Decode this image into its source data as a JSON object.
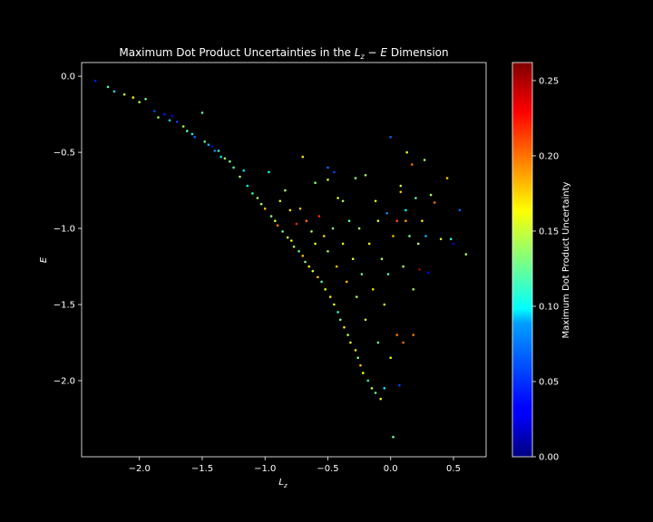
{
  "chart_data": {
    "type": "scatter",
    "title": "Maximum Dot Product Uncertainties in the L_z − E Dimension",
    "title_parts": {
      "prefix": "Maximum Dot Product Uncertainties in the ",
      "var1": "L",
      "sub": "z",
      "op": " − ",
      "var2": "E",
      "suffix": " Dimension"
    },
    "xlabel": {
      "var": "L",
      "sub": "z"
    },
    "ylabel": "E",
    "xlim": [
      -2.46,
      0.76
    ],
    "ylim": [
      -2.5,
      0.09
    ],
    "xticks": [
      -2.0,
      -1.5,
      -1.0,
      -0.5,
      0.0,
      0.5
    ],
    "xtick_labels": [
      "−2.0",
      "−1.5",
      "−1.0",
      "−0.5",
      "0.0",
      "0.5"
    ],
    "yticks": [
      0.0,
      -0.5,
      -1.0,
      -1.5,
      -2.0
    ],
    "ytick_labels": [
      "0.0",
      "−0.5",
      "−1.0",
      "−1.5",
      "−2.0"
    ],
    "colorbar": {
      "label": "Maximum Dot Product Uncertainty",
      "range": [
        0.0,
        0.262
      ],
      "ticks": [
        0.0,
        0.05,
        0.1,
        0.15,
        0.2,
        0.25
      ],
      "tick_labels": [
        "0.00",
        "0.05",
        "0.10",
        "0.15",
        "0.20",
        "0.25"
      ],
      "colormap": "jet"
    },
    "grid": false,
    "legend": "none",
    "background": "#000000",
    "foreground": "#ffffff",
    "points": [
      [
        -2.35,
        -0.03,
        0.04
      ],
      [
        -2.25,
        -0.07,
        0.12
      ],
      [
        -2.2,
        -0.1,
        0.1
      ],
      [
        -2.12,
        -0.12,
        0.15
      ],
      [
        -2.05,
        -0.14,
        0.16
      ],
      [
        -2.0,
        -0.17,
        0.14
      ],
      [
        -1.95,
        -0.15,
        0.13
      ],
      [
        -1.88,
        -0.23,
        0.05
      ],
      [
        -1.85,
        -0.27,
        0.14
      ],
      [
        -1.8,
        -0.25,
        0.04
      ],
      [
        -1.76,
        -0.29,
        0.09
      ],
      [
        -1.74,
        -0.26,
        0.03
      ],
      [
        -1.7,
        -0.3,
        0.05
      ],
      [
        -1.65,
        -0.33,
        0.14
      ],
      [
        -1.62,
        -0.36,
        0.12
      ],
      [
        -1.58,
        -0.38,
        0.1
      ],
      [
        -1.56,
        -0.4,
        0.06
      ],
      [
        -1.5,
        -0.24,
        0.12
      ],
      [
        -1.48,
        -0.43,
        0.12
      ],
      [
        -1.45,
        -0.45,
        0.08
      ],
      [
        -1.42,
        -0.46,
        0.03
      ],
      [
        -1.4,
        -0.49,
        0.07
      ],
      [
        -1.37,
        -0.49,
        0.11
      ],
      [
        -1.35,
        -0.53,
        0.09
      ],
      [
        -1.32,
        -0.54,
        0.14
      ],
      [
        -1.28,
        -0.56,
        0.13
      ],
      [
        -1.25,
        -0.6,
        0.12
      ],
      [
        -1.2,
        -0.66,
        0.14
      ],
      [
        -1.17,
        -0.62,
        0.09
      ],
      [
        -1.14,
        -0.72,
        0.1
      ],
      [
        -1.1,
        -0.77,
        0.11
      ],
      [
        -1.06,
        -0.8,
        0.14
      ],
      [
        -1.03,
        -0.84,
        0.14
      ],
      [
        -1.0,
        -0.87,
        0.18
      ],
      [
        -0.97,
        -0.63,
        0.1
      ],
      [
        -0.95,
        -0.92,
        0.13
      ],
      [
        -0.92,
        -0.95,
        0.15
      ],
      [
        -0.9,
        -0.98,
        0.2
      ],
      [
        -0.88,
        -0.82,
        0.15
      ],
      [
        -0.86,
        -1.02,
        0.12
      ],
      [
        -0.84,
        -0.75,
        0.14
      ],
      [
        -0.82,
        -1.06,
        0.15
      ],
      [
        -0.8,
        -0.88,
        0.17
      ],
      [
        -0.79,
        -1.08,
        0.16
      ],
      [
        -0.77,
        -1.12,
        0.14
      ],
      [
        -0.75,
        -0.97,
        0.22
      ],
      [
        -0.73,
        -1.15,
        0.12
      ],
      [
        -0.72,
        -0.87,
        0.18
      ],
      [
        -0.7,
        -1.18,
        0.18
      ],
      [
        -0.7,
        -0.53,
        0.17
      ],
      [
        -0.68,
        -1.22,
        0.13
      ],
      [
        -0.67,
        -0.95,
        0.2
      ],
      [
        -0.65,
        -1.25,
        0.17
      ],
      [
        -0.63,
        -1.02,
        0.14
      ],
      [
        -0.62,
        -1.28,
        0.15
      ],
      [
        -0.6,
        -1.1,
        0.16
      ],
      [
        -0.6,
        -0.7,
        0.13
      ],
      [
        -0.58,
        -1.32,
        0.18
      ],
      [
        -0.57,
        -0.92,
        0.22
      ],
      [
        -0.55,
        -1.35,
        0.12
      ],
      [
        -0.53,
        -1.05,
        0.17
      ],
      [
        -0.52,
        -1.4,
        0.16
      ],
      [
        -0.5,
        -1.15,
        0.14
      ],
      [
        -0.5,
        -0.6,
        0.06
      ],
      [
        -0.48,
        -1.45,
        0.17
      ],
      [
        -0.46,
        -1.0,
        0.13
      ],
      [
        -0.45,
        -1.5,
        0.16
      ],
      [
        -0.43,
        -1.25,
        0.18
      ],
      [
        -0.42,
        -1.55,
        0.11
      ],
      [
        -0.42,
        -0.8,
        0.16
      ],
      [
        -0.4,
        -1.6,
        0.13
      ],
      [
        -0.38,
        -1.1,
        0.16
      ],
      [
        -0.37,
        -1.65,
        0.17
      ],
      [
        -0.35,
        -1.35,
        0.18
      ],
      [
        -0.34,
        -1.7,
        0.14
      ],
      [
        -0.33,
        -0.95,
        0.12
      ],
      [
        -0.32,
        -1.75,
        0.16
      ],
      [
        -0.3,
        -1.2,
        0.15
      ],
      [
        -0.28,
        -1.8,
        0.17
      ],
      [
        -0.27,
        -1.45,
        0.14
      ],
      [
        -0.26,
        -1.85,
        0.13
      ],
      [
        -0.25,
        -1.0,
        0.14
      ],
      [
        -0.24,
        -1.9,
        0.18
      ],
      [
        -0.23,
        -1.3,
        0.13
      ],
      [
        -0.22,
        -1.95,
        0.16
      ],
      [
        -0.2,
        -1.6,
        0.15
      ],
      [
        -0.2,
        -0.65,
        0.14
      ],
      [
        -0.18,
        -2.0,
        0.11
      ],
      [
        -0.17,
        -1.1,
        0.16
      ],
      [
        -0.15,
        -2.05,
        0.15
      ],
      [
        -0.14,
        -1.4,
        0.17
      ],
      [
        -0.12,
        -2.08,
        0.12
      ],
      [
        -0.1,
        -1.75,
        0.13
      ],
      [
        -0.1,
        -0.95,
        0.15
      ],
      [
        -0.08,
        -2.12,
        0.16
      ],
      [
        -0.07,
        -1.2,
        0.14
      ],
      [
        -0.05,
        -1.5,
        0.15
      ],
      [
        -0.05,
        -2.05,
        0.1
      ],
      [
        -0.03,
        -0.9,
        0.07
      ],
      [
        -0.02,
        -1.3,
        0.12
      ],
      [
        0.0,
        -0.4,
        0.06
      ],
      [
        0.0,
        -1.85,
        0.16
      ],
      [
        0.02,
        -1.05,
        0.18
      ],
      [
        0.05,
        -0.95,
        0.21
      ],
      [
        0.05,
        -1.7,
        0.2
      ],
      [
        0.07,
        -2.03,
        0.05
      ],
      [
        0.08,
        -0.72,
        0.15
      ],
      [
        0.1,
        -1.25,
        0.14
      ],
      [
        0.1,
        -1.75,
        0.2
      ],
      [
        0.12,
        -0.88,
        0.1
      ],
      [
        0.13,
        -0.5,
        0.16
      ],
      [
        0.15,
        -1.05,
        0.13
      ],
      [
        0.17,
        -0.58,
        0.2
      ],
      [
        0.18,
        -1.4,
        0.14
      ],
      [
        0.2,
        -0.8,
        0.12
      ],
      [
        0.22,
        -1.1,
        0.15
      ],
      [
        0.23,
        -1.27,
        0.25
      ],
      [
        0.25,
        -0.95,
        0.17
      ],
      [
        0.27,
        -0.55,
        0.14
      ],
      [
        0.28,
        -1.05,
        0.08
      ],
      [
        0.3,
        -1.29,
        0.03
      ],
      [
        0.32,
        -0.78,
        0.14
      ],
      [
        0.35,
        -0.83,
        0.2
      ],
      [
        0.4,
        -1.07,
        0.15
      ],
      [
        0.45,
        -0.67,
        0.18
      ],
      [
        0.48,
        -1.07,
        0.11
      ],
      [
        0.5,
        -1.1,
        0.03
      ],
      [
        0.55,
        -0.88,
        0.06
      ],
      [
        0.6,
        -1.17,
        0.14
      ],
      [
        0.02,
        -2.37,
        0.13
      ],
      [
        -0.28,
        -0.67,
        0.13
      ],
      [
        -0.45,
        -0.63,
        0.05
      ],
      [
        -0.5,
        -0.68,
        0.15
      ],
      [
        -0.12,
        -0.82,
        0.16
      ],
      [
        0.18,
        -1.7,
        0.2
      ],
      [
        0.08,
        -0.76,
        0.18
      ],
      [
        0.12,
        -0.95,
        0.19
      ],
      [
        -0.38,
        -0.82,
        0.14
      ]
    ]
  }
}
